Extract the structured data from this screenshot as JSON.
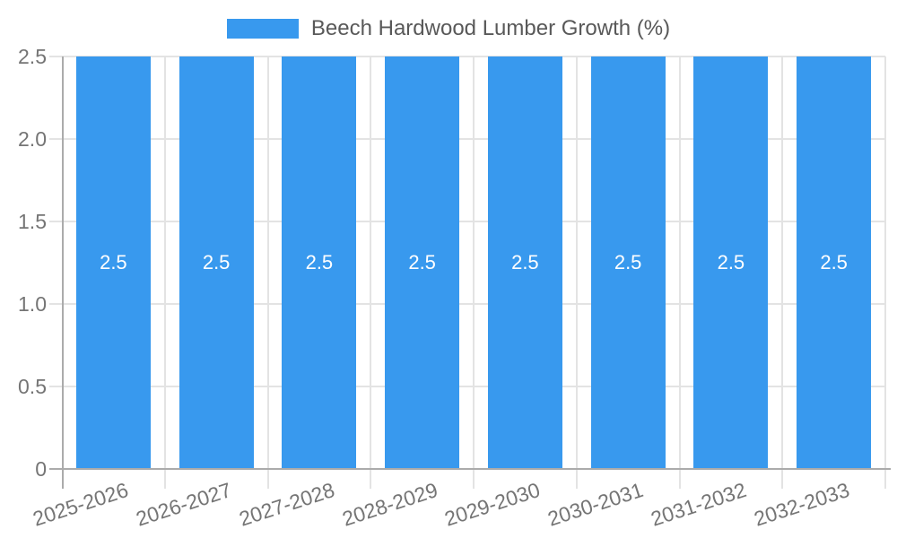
{
  "legend": {
    "label": "Beech Hardwood Lumber Growth (%)"
  },
  "chart_data": {
    "type": "bar",
    "title": "",
    "xlabel": "",
    "ylabel": "",
    "categories": [
      "2025-2026",
      "2026-2027",
      "2027-2028",
      "2028-2029",
      "2029-2030",
      "2030-2031",
      "2031-2032",
      "2032-2033"
    ],
    "series": [
      {
        "name": "Beech Hardwood Lumber Growth (%)",
        "values": [
          2.5,
          2.5,
          2.5,
          2.5,
          2.5,
          2.5,
          2.5,
          2.5
        ]
      }
    ],
    "bar_value_labels": [
      "2.5",
      "2.5",
      "2.5",
      "2.5",
      "2.5",
      "2.5",
      "2.5",
      "2.5"
    ],
    "ylim": [
      0,
      2.5
    ],
    "ytick_labels": [
      "0",
      "0.5",
      "1.0",
      "1.5",
      "2.0",
      "2.5"
    ],
    "ytick_values": [
      0,
      0.5,
      1.0,
      1.5,
      2.0,
      2.5
    ],
    "grid": true,
    "legend_position": "top-center",
    "colors": {
      "bar": "#3899EE",
      "grid": "#E3E3E3",
      "axis": "#ABABAB",
      "tick_text": "#757575",
      "legend_text": "#595959",
      "bar_label_text": "#FFFFFF"
    }
  }
}
